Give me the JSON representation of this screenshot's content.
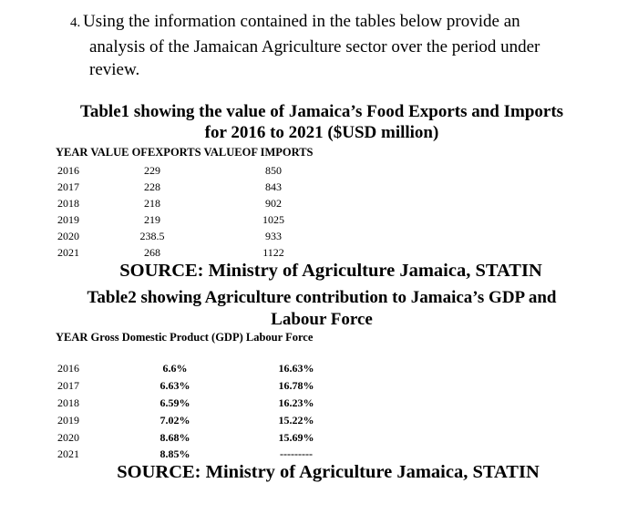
{
  "question": {
    "number": "4.",
    "lines": [
      "Using the information contained in the tables below provide an",
      "analysis of the Jamaican Agriculture sector over the period under",
      "review."
    ]
  },
  "table1": {
    "title_lines": [
      "Table1 showing the value of Jamaica’s Food Exports and Imports",
      "for 2016 to 2021   ($USD million)"
    ],
    "header": "YEAR VALUE OFEXPORTS VALUEOF IMPORTS",
    "rows": [
      [
        "2016",
        "229",
        "850"
      ],
      [
        "2017",
        "228",
        "843"
      ],
      [
        "2018",
        "218",
        "902"
      ],
      [
        "2019",
        "219",
        "1025"
      ],
      [
        "2020",
        "238.5",
        "933"
      ],
      [
        "2021",
        "268",
        "1122"
      ]
    ],
    "source": "SOURCE: Ministry of Agriculture Jamaica, STATIN"
  },
  "table2": {
    "title_lines": [
      "Table2 showing Agriculture contribution to Jamaica’s GDP and",
      "Labour Force"
    ],
    "header": "YEAR Gross Domestic Product (GDP) Labour Force",
    "rows": [
      [
        "2016",
        "6.6%",
        "16.63%"
      ],
      [
        "2017",
        "6.63%",
        "16.78%"
      ],
      [
        "2018",
        "6.59%",
        "16.23%"
      ],
      [
        "2019",
        "7.02%",
        "15.22%"
      ],
      [
        "2020",
        "8.68%",
        "15.69%"
      ],
      [
        "2021",
        "8.85%",
        "---------"
      ]
    ],
    "source": "SOURCE: Ministry of Agriculture Jamaica, STATIN"
  }
}
